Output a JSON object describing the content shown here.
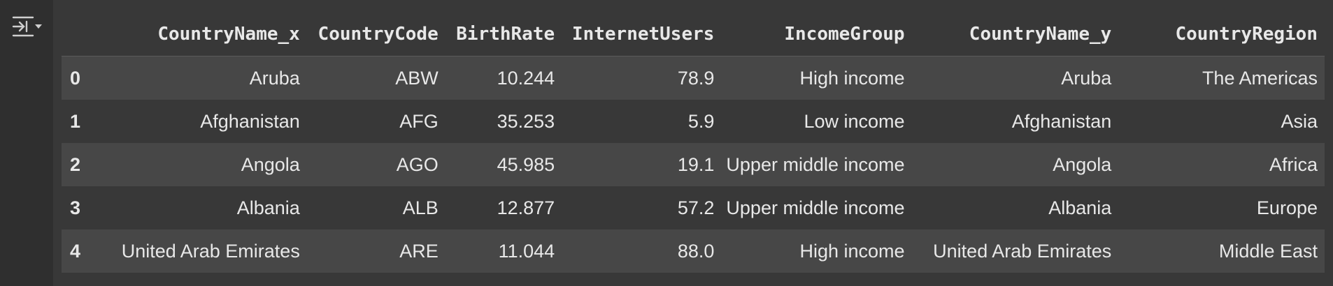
{
  "columns": [
    "",
    "CountryName_x",
    "CountryCode",
    "BirthRate",
    "InternetUsers",
    "IncomeGroup",
    "CountryName_y",
    "CountryRegion"
  ],
  "rows": [
    [
      "0",
      "Aruba",
      "ABW",
      "10.244",
      "78.9",
      "High income",
      "Aruba",
      "The Americas"
    ],
    [
      "1",
      "Afghanistan",
      "AFG",
      "35.253",
      "5.9",
      "Low income",
      "Afghanistan",
      "Asia"
    ],
    [
      "2",
      "Angola",
      "AGO",
      "45.985",
      "19.1",
      "Upper middle income",
      "Angola",
      "Africa"
    ],
    [
      "3",
      "Albania",
      "ALB",
      "12.877",
      "57.2",
      "Upper middle income",
      "Albania",
      "Europe"
    ],
    [
      "4",
      "United Arab Emirates",
      "ARE",
      "11.044",
      "88.0",
      "High income",
      "United Arab Emirates",
      "Middle East"
    ]
  ],
  "icons": {
    "output_toggle": "output-format-icon"
  }
}
